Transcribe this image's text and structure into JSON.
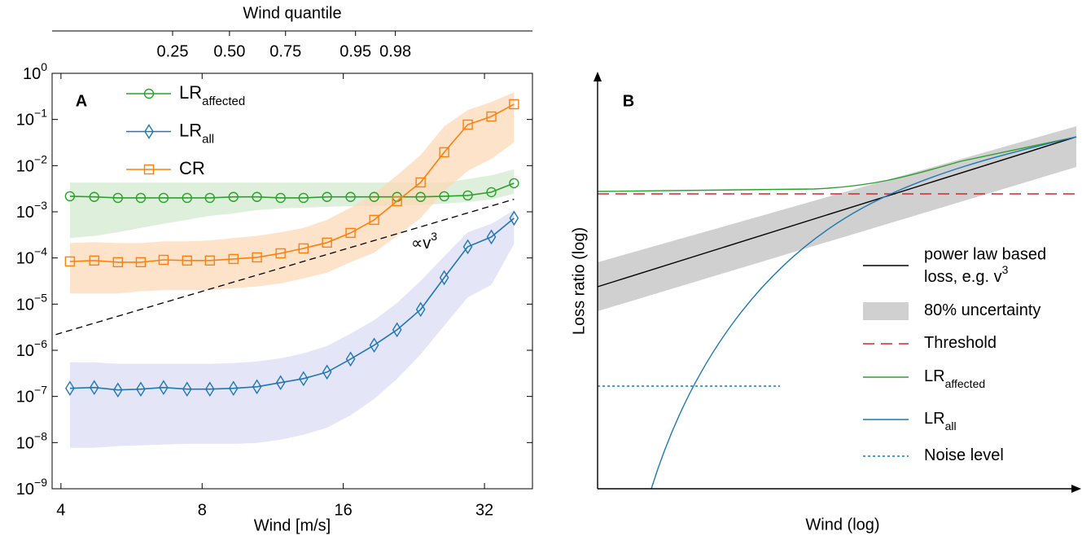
{
  "chart_data": [
    {
      "type": "line",
      "title": "A",
      "xlabel": "Wind [m/s]",
      "x2label": "Wind quantile",
      "xscale": "log",
      "yscale": "log",
      "legend": "upper left",
      "xlim": [
        3.83,
        40.5
      ],
      "ylim": [
        1e-09,
        1
      ],
      "xticks": [
        4,
        8,
        16,
        32
      ],
      "x2ticks": [
        {
          "value": 6.92,
          "label": "0.25"
        },
        {
          "value": 9.15,
          "label": "0.50"
        },
        {
          "value": 12.05,
          "label": "0.75"
        },
        {
          "value": 16.99,
          "label": "0.95"
        },
        {
          "value": 20.66,
          "label": "0.98"
        }
      ],
      "yticks": [
        {
          "value": 1,
          "label": "10",
          "exponent": "0"
        },
        {
          "value": 0.1,
          "label": "10",
          "exponent": "−1"
        },
        {
          "value": 0.01,
          "label": "10",
          "exponent": "−2"
        },
        {
          "value": 0.001,
          "label": "10",
          "exponent": "−3"
        },
        {
          "value": 0.0001,
          "label": "10",
          "exponent": "−4"
        },
        {
          "value": 1e-05,
          "label": "10",
          "exponent": "−5"
        },
        {
          "value": 1e-06,
          "label": "10",
          "exponent": "−6"
        },
        {
          "value": 1e-07,
          "label": "10",
          "exponent": "−7"
        },
        {
          "value": 1e-08,
          "label": "10",
          "exponent": "−8"
        },
        {
          "value": 1e-09,
          "label": "10",
          "exponent": "−9"
        }
      ],
      "x": [
        4.18,
        4.71,
        5.29,
        5.92,
        6.62,
        7.43,
        8.31,
        9.33,
        10.47,
        11.76,
        13.16,
        14.77,
        16.58,
        18.62,
        20.83,
        23.39,
        26.26,
        29.48,
        33.1,
        37.0
      ],
      "series": [
        {
          "name": "LR",
          "subscript": "affected",
          "color": "#2ca02c",
          "marker": "circle",
          "band_color": "#d3ead0",
          "values": [
            0.00217,
            0.0021,
            0.002,
            0.002,
            0.002,
            0.002,
            0.002,
            0.0021,
            0.0021,
            0.002,
            0.002,
            0.0021,
            0.0021,
            0.0021,
            0.0021,
            0.0021,
            0.00217,
            0.00226,
            0.00266,
            0.00416
          ],
          "upper": [
            0.0043,
            0.0043,
            0.0043,
            0.0043,
            0.0043,
            0.0043,
            0.0043,
            0.0043,
            0.0043,
            0.0043,
            0.0043,
            0.0043,
            0.0043,
            0.0043,
            0.0043,
            0.0043,
            0.0043,
            0.0051,
            0.0062,
            0.0083
          ],
          "lower": [
            0.00027,
            0.0003,
            0.00036,
            0.00045,
            0.00055,
            0.00067,
            0.00082,
            0.00092,
            0.00109,
            0.00118,
            0.00123,
            0.00128,
            0.00133,
            0.00133,
            0.00139,
            0.00139,
            0.00151,
            0.00163,
            0.00185,
            0.00245
          ]
        },
        {
          "name": "LR",
          "subscript": "all",
          "color": "#1f77b4",
          "marker": "diamond",
          "band_color": "#dcdcf6",
          "values": [
            1.5e-07,
            1.56e-07,
            1.38e-07,
            1.44e-07,
            1.56e-07,
            1.44e-07,
            1.44e-07,
            1.5e-07,
            1.62e-07,
            1.99e-07,
            2.43e-07,
            3.37e-07,
            6.45e-07,
            1.29e-06,
            2.78e-06,
            7.67e-06,
            3.74e-05,
            0.000175,
            0.000285,
            0.000726
          ],
          "upper": [
            5.5e-07,
            5.5e-07,
            5.1e-07,
            5.1e-07,
            5.1e-07,
            5.1e-07,
            5.1e-07,
            5.3e-07,
            5.7e-07,
            6.7e-07,
            8.6e-07,
            1.24e-06,
            2.3e-06,
            4.5e-06,
            1.06e-05,
            3.2e-05,
            0.000108,
            0.00036,
            0.00055,
            0.00109
          ],
          "lower": [
            7.7e-09,
            7.7e-09,
            8.4e-09,
            8.7e-09,
            9.1e-09,
            9.4e-09,
            9.4e-09,
            9.4e-09,
            9.8e-09,
            1.16e-08,
            1.48e-08,
            2.1e-08,
            3.9e-08,
            8.8e-08,
            2.4e-07,
            8.2e-07,
            3.4e-06,
            1.4e-05,
            2.6e-05,
            0.0002
          ]
        },
        {
          "name": "CR",
          "color": "#ff7f0e",
          "marker": "square",
          "band_color": "#fcdab8",
          "values": [
            8.4e-05,
            8.8e-05,
            8.1e-05,
            8.1e-05,
            9.1e-05,
            8.8e-05,
            8.8e-05,
            9.5e-05,
            0.000103,
            0.000126,
            0.000161,
            0.000215,
            0.000349,
            0.000669,
            0.0017,
            0.00433,
            0.0195,
            0.0774,
            0.116,
            0.214
          ],
          "upper": [
            0.00021,
            0.00022,
            0.00021,
            0.00021,
            0.00023,
            0.00023,
            0.00024,
            0.00027,
            0.0003,
            0.00036,
            0.00045,
            0.00067,
            0.00123,
            0.0025,
            0.0062,
            0.017,
            0.071,
            0.16,
            0.24,
            0.39
          ],
          "lower": [
            1.7e-05,
            1.7e-05,
            1.7e-05,
            1.9e-05,
            2e-05,
            2e-05,
            2e-05,
            2.2e-05,
            2.4e-05,
            2.8e-05,
            3.6e-05,
            4.8e-05,
            8.1e-05,
            0.00013,
            0.0003,
            0.00073,
            0.0028,
            0.0077,
            0.014,
            0.032
          ]
        }
      ],
      "reference_line": {
        "label": "∝v",
        "superscript": "3",
        "color": "#000000",
        "x": [
          3.9,
          37.0
        ],
        "values": [
          2.19e-06,
          0.00187
        ]
      }
    },
    {
      "type": "schematic",
      "title": "B",
      "xlabel": "Wind (log)",
      "ylabel": "Loss ratio (log)",
      "legend": [
        {
          "lines": [
            "power law based",
            "loss, e.g. v"
          ],
          "superscript": "3",
          "color": "#000000",
          "style": "solid"
        },
        {
          "label": "80% uncertainty",
          "color": "#d0d0d0",
          "style": "patch"
        },
        {
          "label": "Threshold",
          "color": "#d62728",
          "style": "dashed"
        },
        {
          "label": "LR",
          "subscript": "affected",
          "color": "#2ca02c",
          "style": "solid"
        },
        {
          "label": "LR",
          "subscript": "all",
          "color": "#1f77b4",
          "style": "solid"
        },
        {
          "label": "Noise level",
          "color": "#1f77b4",
          "style": "dotted"
        }
      ]
    }
  ]
}
